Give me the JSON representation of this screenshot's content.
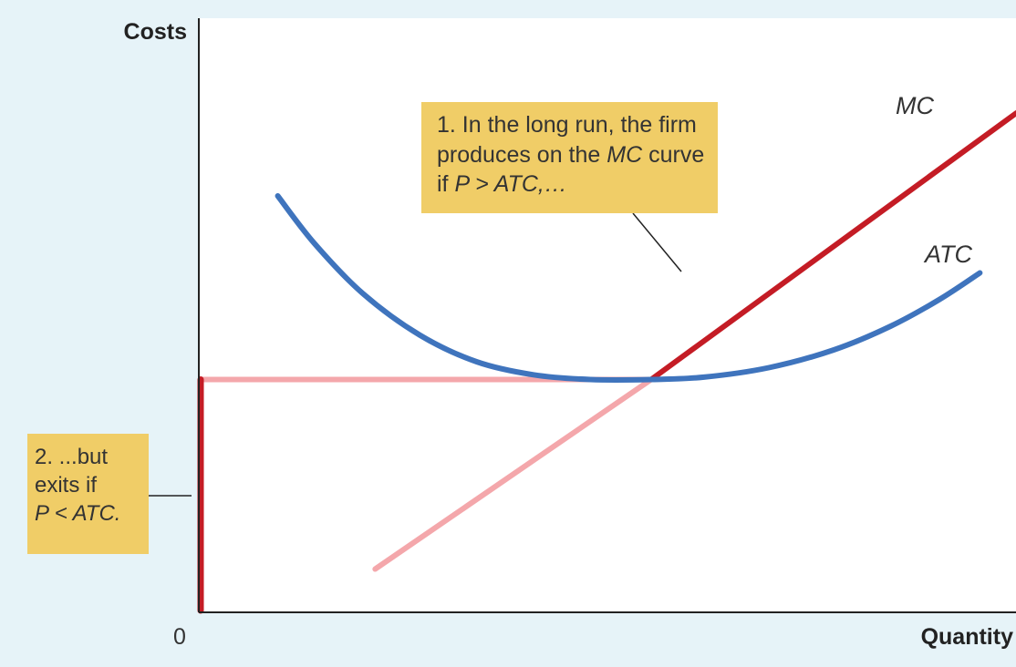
{
  "chart_data": {
    "type": "line",
    "xlabel": "Quantity",
    "ylabel": "Costs",
    "origin_label": "0",
    "xlim": [
      0,
      100
    ],
    "ylim": [
      0,
      100
    ],
    "ticks": false,
    "grid": false,
    "series": [
      {
        "name": "MC",
        "color": "#c41c25",
        "segment": "solid",
        "points": [
          [
            55.5,
            39.0
          ],
          [
            100.5,
            84.0
          ]
        ]
      },
      {
        "name": "MC",
        "color": "#f4a7ab",
        "segment": "pale",
        "points": [
          [
            21.5,
            7.0
          ],
          [
            55.5,
            39.0
          ]
        ]
      },
      {
        "name": "ATC",
        "color": "#3f74bd",
        "points": [
          [
            9.5,
            70.0
          ],
          [
            14.0,
            62.0
          ],
          [
            20.0,
            53.5
          ],
          [
            27.0,
            46.5
          ],
          [
            34.0,
            42.0
          ],
          [
            41.0,
            39.8
          ],
          [
            48.0,
            39.0
          ],
          [
            55.5,
            39.0
          ],
          [
            62.0,
            39.4
          ],
          [
            70.0,
            41.0
          ],
          [
            78.0,
            44.0
          ],
          [
            85.0,
            48.0
          ],
          [
            91.0,
            52.5
          ],
          [
            96.0,
            57.0
          ]
        ]
      },
      {
        "name": "",
        "color": "#f4a7ab",
        "segment": "pale horizontal at minimum ATC",
        "points": [
          [
            0,
            39.0
          ],
          [
            55.5,
            39.0
          ]
        ]
      },
      {
        "name": "",
        "color": "#c41c25",
        "segment": "exit along vertical axis",
        "points": [
          [
            0,
            0
          ],
          [
            0,
            39.0
          ]
        ]
      }
    ],
    "labels": {
      "mc": "MC",
      "atc": "ATC"
    },
    "annotations": {
      "long_run": {
        "prefix": "1. In the long run, the firm",
        "line2_pre": "produces on the ",
        "line2_it": "MC",
        "line2_post": " curve",
        "line3_pre": "if ",
        "line3_it": "P > ATC,…"
      },
      "exit": {
        "line1": "2. ...but",
        "line2": "exits if",
        "line3_it": "P < ATC."
      }
    }
  }
}
